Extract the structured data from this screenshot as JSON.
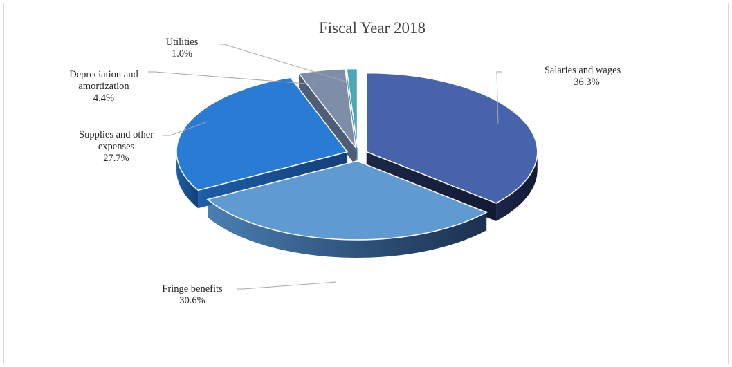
{
  "chart_data": {
    "type": "pie",
    "title": "Fiscal Year 2018",
    "slices": [
      {
        "label": [
          "Salaries and wages"
        ],
        "percent_text": "36.3%",
        "value": 36.3,
        "color": "#4763ab"
      },
      {
        "label": [
          "Fringe benefits"
        ],
        "percent_text": "30.6%",
        "value": 30.6,
        "color": "#5f9bd1"
      },
      {
        "label": [
          "Supplies and other",
          "expenses"
        ],
        "percent_text": "27.7%",
        "value": 27.7,
        "color": "#2a7bd3"
      },
      {
        "label": [
          "Depreciation and",
          "amortization"
        ],
        "percent_text": "4.4%",
        "value": 4.4,
        "color": "#7f8ea8"
      },
      {
        "label": [
          "Utilities"
        ],
        "percent_text": "1.0%",
        "value": 1.0,
        "color": "#4aa7b5"
      }
    ],
    "exploded": true,
    "style": "3d"
  }
}
